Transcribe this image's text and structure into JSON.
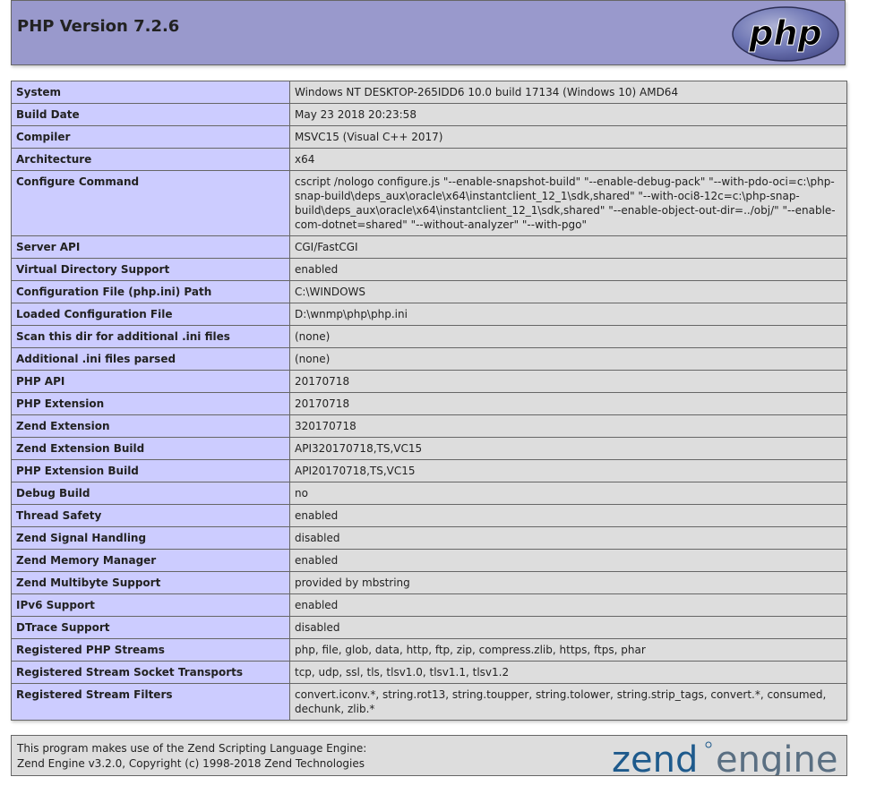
{
  "header": {
    "title": "PHP Version 7.2.6",
    "logo_text": "php"
  },
  "info_rows": [
    {
      "key": "System",
      "value": "Windows NT DESKTOP-265IDD6 10.0 build 17134 (Windows 10) AMD64"
    },
    {
      "key": "Build Date",
      "value": "May 23 2018 20:23:58"
    },
    {
      "key": "Compiler",
      "value": "MSVC15 (Visual C++ 2017)"
    },
    {
      "key": "Architecture",
      "value": "x64"
    },
    {
      "key": "Configure Command",
      "value": "cscript /nologo configure.js \"--enable-snapshot-build\" \"--enable-debug-pack\" \"--with-pdo-oci=c:\\php-snap-build\\deps_aux\\oracle\\x64\\instantclient_12_1\\sdk,shared\" \"--with-oci8-12c=c:\\php-snap-build\\deps_aux\\oracle\\x64\\instantclient_12_1\\sdk,shared\" \"--enable-object-out-dir=../obj/\" \"--enable-com-dotnet=shared\" \"--without-analyzer\" \"--with-pgo\""
    },
    {
      "key": "Server API",
      "value": "CGI/FastCGI"
    },
    {
      "key": "Virtual Directory Support",
      "value": "enabled"
    },
    {
      "key": "Configuration File (php.ini) Path",
      "value": "C:\\WINDOWS"
    },
    {
      "key": "Loaded Configuration File",
      "value": "D:\\wnmp\\php\\php.ini"
    },
    {
      "key": "Scan this dir for additional .ini files",
      "value": "(none)"
    },
    {
      "key": "Additional .ini files parsed",
      "value": "(none)"
    },
    {
      "key": "PHP API",
      "value": "20170718"
    },
    {
      "key": "PHP Extension",
      "value": "20170718"
    },
    {
      "key": "Zend Extension",
      "value": "320170718"
    },
    {
      "key": "Zend Extension Build",
      "value": "API320170718,TS,VC15"
    },
    {
      "key": "PHP Extension Build",
      "value": "API20170718,TS,VC15"
    },
    {
      "key": "Debug Build",
      "value": "no"
    },
    {
      "key": "Thread Safety",
      "value": "enabled"
    },
    {
      "key": "Zend Signal Handling",
      "value": "disabled"
    },
    {
      "key": "Zend Memory Manager",
      "value": "enabled"
    },
    {
      "key": "Zend Multibyte Support",
      "value": "provided by mbstring"
    },
    {
      "key": "IPv6 Support",
      "value": "enabled"
    },
    {
      "key": "DTrace Support",
      "value": "disabled"
    },
    {
      "key": "Registered PHP Streams",
      "value": "php, file, glob, data, http, ftp, zip, compress.zlib, https, ftps, phar"
    },
    {
      "key": "Registered Stream Socket Transports",
      "value": "tcp, udp, ssl, tls, tlsv1.0, tlsv1.1, tlsv1.2"
    },
    {
      "key": "Registered Stream Filters",
      "value": "convert.iconv.*, string.rot13, string.toupper, string.tolower, string.strip_tags, convert.*, consumed, dechunk, zlib.*"
    }
  ],
  "footer": {
    "line1": "This program makes use of the Zend Scripting Language Engine:",
    "line2": "Zend Engine v3.2.0, Copyright (c) 1998-2018 Zend Technologies",
    "logo_word1": "zend",
    "logo_word2": "engine"
  },
  "colors": {
    "header_bg": "#9999cc",
    "key_bg": "#ccccff",
    "value_bg": "#dddddd",
    "border": "#666666",
    "zend_blue": "#1e5a8c"
  }
}
